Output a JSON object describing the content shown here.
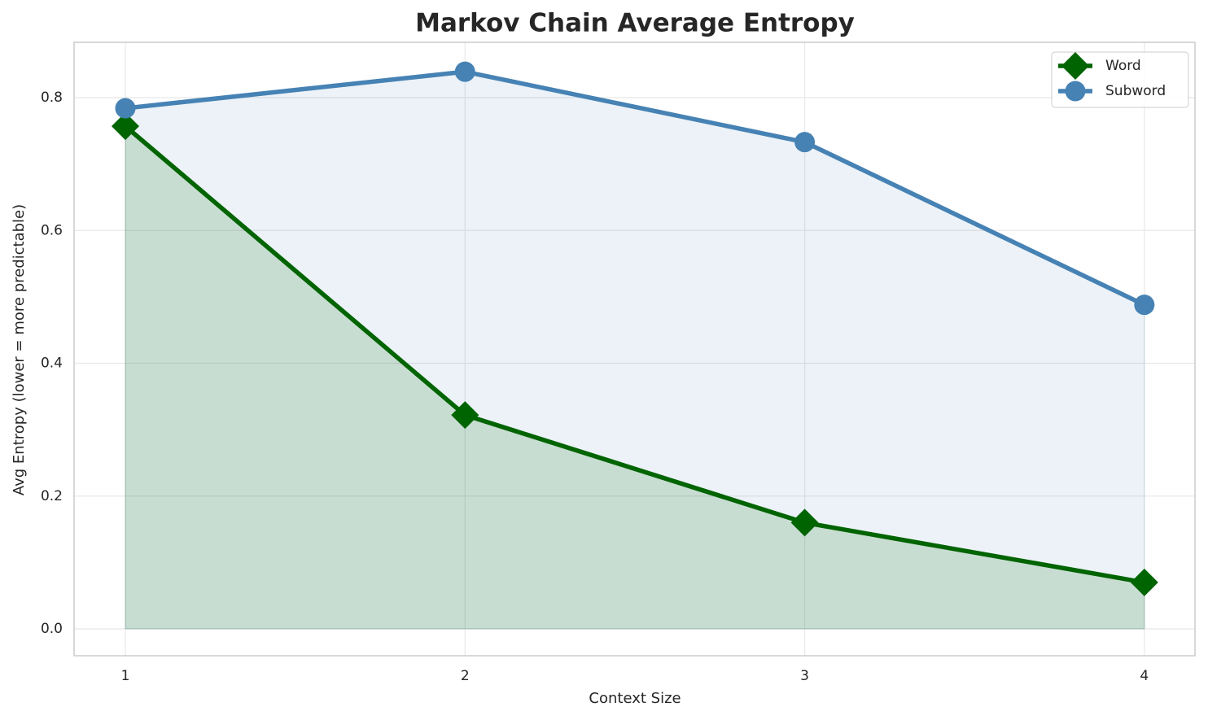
{
  "chart_data": {
    "type": "line",
    "title": "Markov Chain Average Entropy",
    "x_label": "Context Size",
    "y_label": "Avg Entropy (lower = more predictable)",
    "x": [
      1,
      2,
      3,
      4
    ],
    "series": [
      {
        "name": "Word",
        "color": "#006400",
        "marker": "diamond",
        "values": [
          0.757,
          0.322,
          0.16,
          0.07
        ]
      },
      {
        "name": "Subword",
        "color": "#4682b4",
        "marker": "circle",
        "values": [
          0.784,
          0.839,
          0.733,
          0.488
        ]
      }
    ],
    "xlim": [
      0.849,
      4.149
    ],
    "ylim": [
      -0.0404,
      0.8833
    ],
    "xticks": [
      1,
      2,
      3,
      4
    ],
    "yticks": [
      {
        "value": 0,
        "label": "0.0"
      },
      0.2,
      0.4,
      0.6,
      0.8
    ],
    "grid": true,
    "fill_area": true,
    "legend": "upper right"
  }
}
